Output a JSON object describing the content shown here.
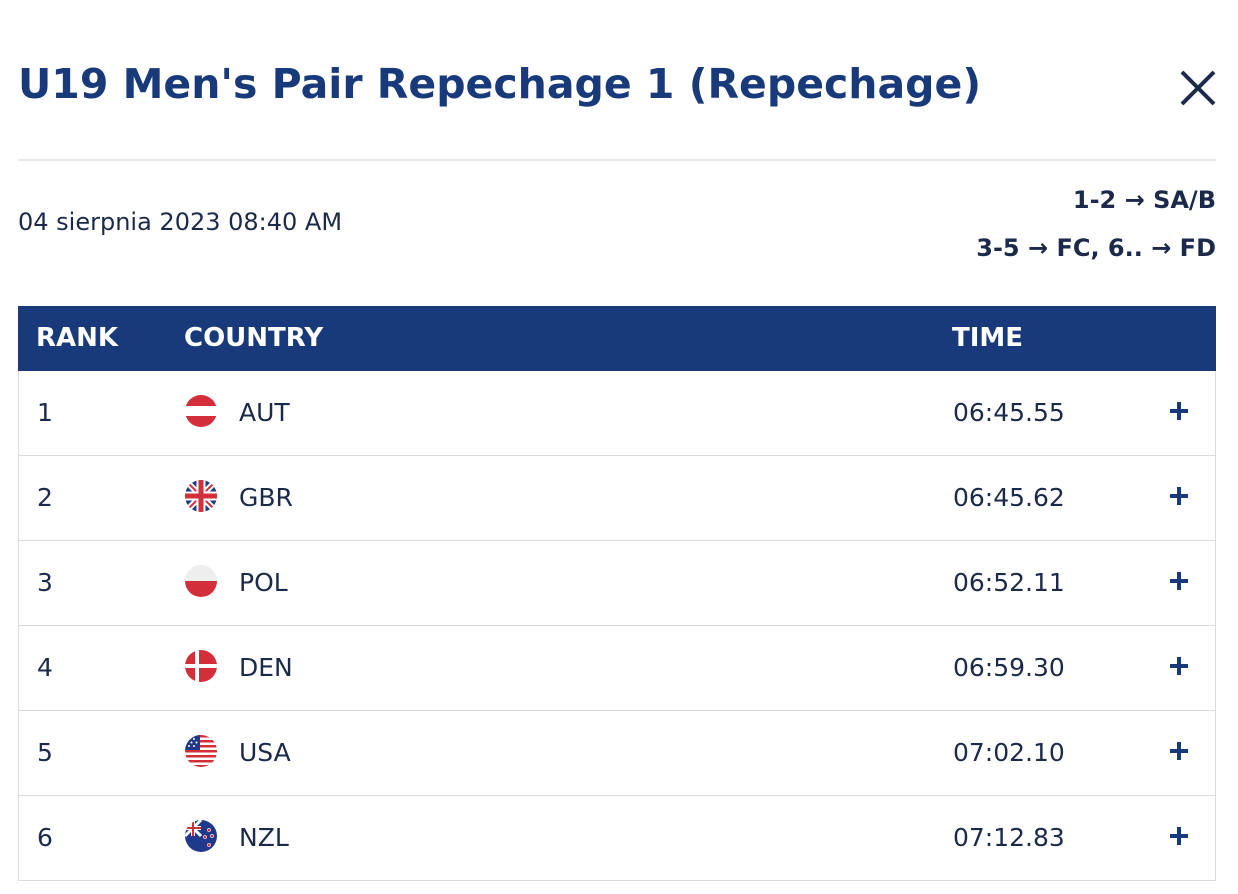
{
  "header": {
    "title": "U19 Men's Pair Repechage 1 (Repechage)",
    "date": "04 sierpnia 2023 08:40 AM",
    "progression": [
      "1-2 → SA/B",
      "3-5 → FC, 6.. → FD"
    ]
  },
  "table": {
    "columns": [
      "RANK",
      "COUNTRY",
      "TIME"
    ],
    "rows": [
      [
        "1",
        "AUT",
        "06:45.55"
      ],
      [
        "2",
        "GBR",
        "06:45.62"
      ],
      [
        "3",
        "POL",
        "06:52.11"
      ],
      [
        "4",
        "DEN",
        "06:59.30"
      ],
      [
        "5",
        "USA",
        "07:02.10"
      ],
      [
        "6",
        "NZL",
        "07:12.83"
      ]
    ]
  }
}
